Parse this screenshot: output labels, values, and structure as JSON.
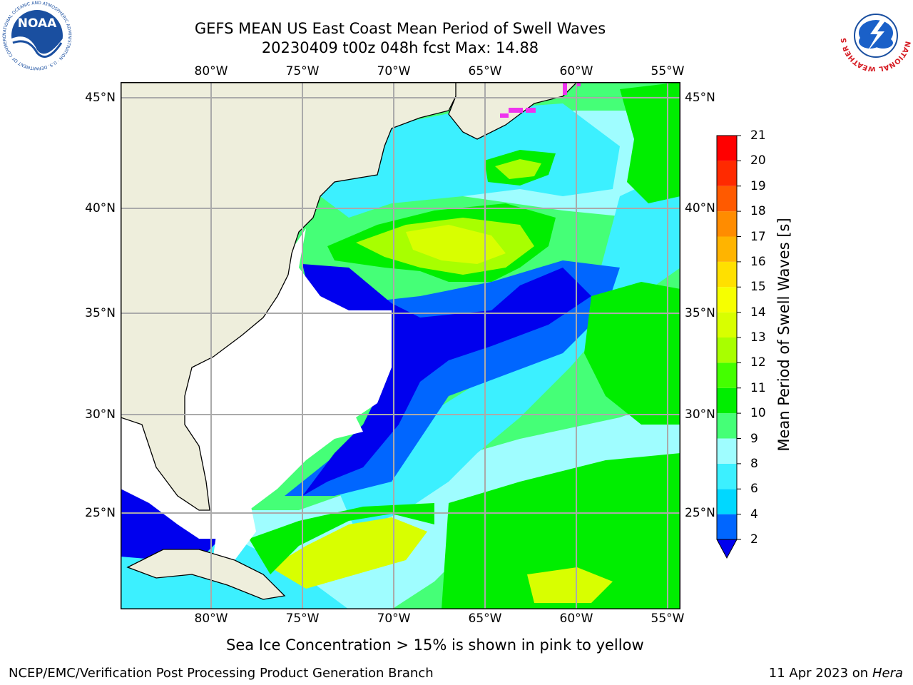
{
  "header": {
    "title_line1": "GEFS MEAN US East Coast Mean Period of Swell Waves",
    "title_line2": "20230409 t00z 048h fcst   Max: 14.88"
  },
  "logos": {
    "left": {
      "text": "NOAA",
      "ring_text": "NATIONAL OCEANIC AND ATMOSPHERIC ADMINISTRATION · U.S. DEPARTMENT OF COMMERCE",
      "color": "#1a4fa0"
    },
    "right": {
      "ring_text": "NATIONAL WEATHER SERVICE",
      "color": "#d61f26"
    }
  },
  "axes": {
    "lon_labels": [
      "80°W",
      "75°W",
      "70°W",
      "65°W",
      "60°W",
      "55°W"
    ],
    "lon_values": [
      -80,
      -75,
      -70,
      -65,
      -60,
      -55
    ],
    "lat_labels": [
      "45°N",
      "40°N",
      "35°N",
      "30°N",
      "25°N"
    ],
    "lat_values": [
      45,
      40,
      35,
      30,
      25
    ],
    "lon_range": [
      -85,
      -55
    ],
    "lat_range": [
      20.5,
      45.8
    ],
    "grid": true
  },
  "colorbar": {
    "label": "Mean Period of Swell Waves [s]",
    "ticks": [
      "2",
      "4",
      "6",
      "8",
      "9",
      "10",
      "11",
      "12",
      "13",
      "14",
      "15",
      "16",
      "17",
      "18",
      "19",
      "20",
      "21"
    ],
    "colors": [
      "#0066ff",
      "#00d8ff",
      "#3cf0ff",
      "#9ffdff",
      "#45ff77",
      "#00ee00",
      "#44ff00",
      "#a8ff00",
      "#d8ff00",
      "#f6ff00",
      "#ffe000",
      "#ffb400",
      "#ff8c00",
      "#ff5a00",
      "#ff2a00",
      "#ff0000"
    ],
    "under_color": "#0000ee"
  },
  "colors": {
    "land": "#eeeedc",
    "ocean_base": "#45ff77",
    "sea_ice": "#ee33ee"
  },
  "footer": {
    "note": "Sea Ice Concentration > 15% is shown in pink to yellow",
    "credit": "NCEP/EMC/Verification Post Processing Product Generation Branch",
    "date": "11 Apr 2023 on ",
    "machine": "Hera"
  }
}
